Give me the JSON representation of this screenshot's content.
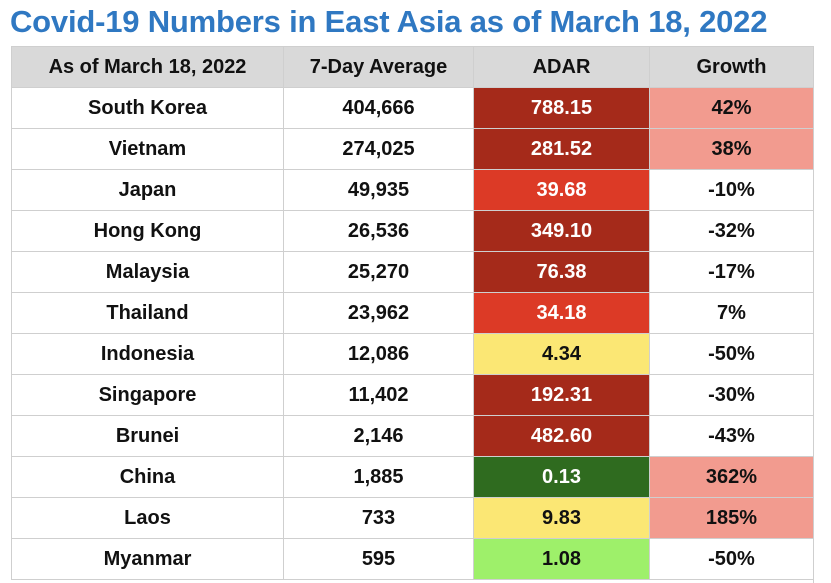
{
  "title": "Covid-19 Numbers in East Asia as of March 18, 2022",
  "colors": {
    "title": "#2f78c2",
    "header_bg": "#d9d9d9",
    "adar_dark_red": "#a52a1a",
    "adar_red": "#dc3a26",
    "adar_yellow": "#fbe774",
    "adar_dark_green": "#2f6b1f",
    "adar_light_green": "#9ef06a",
    "growth_pink": "#f29b8f"
  },
  "chart_data": {
    "type": "table",
    "columns": [
      "As of March 18, 2022",
      "7-Day Average",
      "ADAR",
      "Growth"
    ],
    "rows": [
      {
        "country": "South Korea",
        "avg": "404,666",
        "adar": "788.15",
        "growth": "42%",
        "adar_color": "#a52a1a",
        "adar_text": "#ffffff",
        "growth_color": "#f29b8f"
      },
      {
        "country": "Vietnam",
        "avg": "274,025",
        "adar": "281.52",
        "growth": "38%",
        "adar_color": "#a52a1a",
        "adar_text": "#ffffff",
        "growth_color": "#f29b8f"
      },
      {
        "country": "Japan",
        "avg": "49,935",
        "adar": "39.68",
        "growth": "-10%",
        "adar_color": "#dc3a26",
        "adar_text": "#ffffff",
        "growth_color": "#ffffff"
      },
      {
        "country": "Hong Kong",
        "avg": "26,536",
        "adar": "349.10",
        "growth": "-32%",
        "adar_color": "#a52a1a",
        "adar_text": "#ffffff",
        "growth_color": "#ffffff"
      },
      {
        "country": "Malaysia",
        "avg": "25,270",
        "adar": "76.38",
        "growth": "-17%",
        "adar_color": "#a52a1a",
        "adar_text": "#ffffff",
        "growth_color": "#ffffff"
      },
      {
        "country": "Thailand",
        "avg": "23,962",
        "adar": "34.18",
        "growth": "7%",
        "adar_color": "#dc3a26",
        "adar_text": "#ffffff",
        "growth_color": "#ffffff"
      },
      {
        "country": "Indonesia",
        "avg": "12,086",
        "adar": "4.34",
        "growth": "-50%",
        "adar_color": "#fbe774",
        "adar_text": "#111111",
        "growth_color": "#ffffff"
      },
      {
        "country": "Singapore",
        "avg": "11,402",
        "adar": "192.31",
        "growth": "-30%",
        "adar_color": "#a52a1a",
        "adar_text": "#ffffff",
        "growth_color": "#ffffff"
      },
      {
        "country": "Brunei",
        "avg": "2,146",
        "adar": "482.60",
        "growth": "-43%",
        "adar_color": "#a52a1a",
        "adar_text": "#ffffff",
        "growth_color": "#ffffff"
      },
      {
        "country": "China",
        "avg": "1,885",
        "adar": "0.13",
        "growth": "362%",
        "adar_color": "#2f6b1f",
        "adar_text": "#ffffff",
        "growth_color": "#f29b8f"
      },
      {
        "country": "Laos",
        "avg": "733",
        "adar": "9.83",
        "growth": "185%",
        "adar_color": "#fbe774",
        "adar_text": "#111111",
        "growth_color": "#f29b8f"
      },
      {
        "country": "Myanmar",
        "avg": "595",
        "adar": "1.08",
        "growth": "-50%",
        "adar_color": "#9ef06a",
        "adar_text": "#111111",
        "growth_color": "#ffffff"
      }
    ]
  }
}
